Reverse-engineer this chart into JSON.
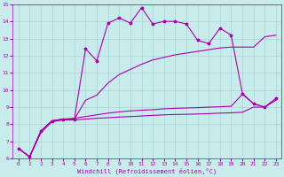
{
  "xlabel": "Windchill (Refroidissement éolien,°C)",
  "xlim": [
    -0.5,
    23.5
  ],
  "ylim": [
    6,
    15
  ],
  "bg_color": "#c8ecec",
  "grid_color": "#aad4d4",
  "line_color": "#aa00aa",
  "x_ticks": [
    0,
    1,
    2,
    3,
    4,
    5,
    6,
    7,
    8,
    9,
    10,
    11,
    12,
    13,
    14,
    15,
    16,
    17,
    18,
    19,
    20,
    21,
    22,
    23
  ],
  "y_ticks": [
    6,
    7,
    8,
    9,
    10,
    11,
    12,
    13,
    14,
    15
  ],
  "curve1_x": [
    0,
    1,
    2,
    3,
    4,
    5,
    6,
    7,
    8,
    9,
    10,
    11,
    12,
    13,
    14,
    15,
    16,
    17,
    18,
    19,
    20,
    21,
    22,
    23
  ],
  "curve1_y": [
    6.6,
    6.1,
    7.6,
    8.2,
    8.3,
    8.3,
    12.4,
    11.7,
    13.9,
    14.2,
    13.9,
    14.8,
    13.85,
    14.0,
    14.0,
    13.85,
    12.9,
    12.7,
    13.6,
    13.2,
    9.8,
    9.2,
    9.0,
    9.5
  ],
  "curve2_x": [
    0,
    1,
    2,
    3,
    4,
    5,
    6,
    7,
    8,
    9,
    10,
    11,
    12,
    13,
    14,
    15,
    16,
    17,
    18,
    19,
    20,
    21,
    22,
    23
  ],
  "curve2_y": [
    6.6,
    6.1,
    7.6,
    8.2,
    8.3,
    8.3,
    9.4,
    9.7,
    10.4,
    10.9,
    11.2,
    11.5,
    11.75,
    11.9,
    12.05,
    12.15,
    12.25,
    12.35,
    12.45,
    12.5,
    12.5,
    12.5,
    13.1,
    13.2
  ],
  "curve3_x": [
    0,
    1,
    2,
    3,
    4,
    5,
    6,
    7,
    8,
    9,
    10,
    11,
    12,
    13,
    14,
    15,
    16,
    17,
    18,
    19,
    20,
    21,
    22,
    23
  ],
  "curve3_y": [
    6.6,
    6.1,
    7.6,
    8.2,
    8.3,
    8.35,
    8.45,
    8.55,
    8.65,
    8.72,
    8.78,
    8.82,
    8.85,
    8.9,
    8.93,
    8.95,
    8.97,
    9.0,
    9.02,
    9.05,
    9.75,
    9.2,
    9.0,
    9.5
  ],
  "curve4_x": [
    0,
    1,
    2,
    3,
    4,
    5,
    6,
    7,
    8,
    9,
    10,
    11,
    12,
    13,
    14,
    15,
    16,
    17,
    18,
    19,
    20,
    21,
    22,
    23
  ],
  "curve4_y": [
    6.6,
    6.1,
    7.5,
    8.15,
    8.25,
    8.25,
    8.3,
    8.35,
    8.38,
    8.42,
    8.45,
    8.48,
    8.52,
    8.55,
    8.57,
    8.58,
    8.6,
    8.62,
    8.65,
    8.67,
    8.7,
    9.0,
    9.0,
    9.4
  ]
}
